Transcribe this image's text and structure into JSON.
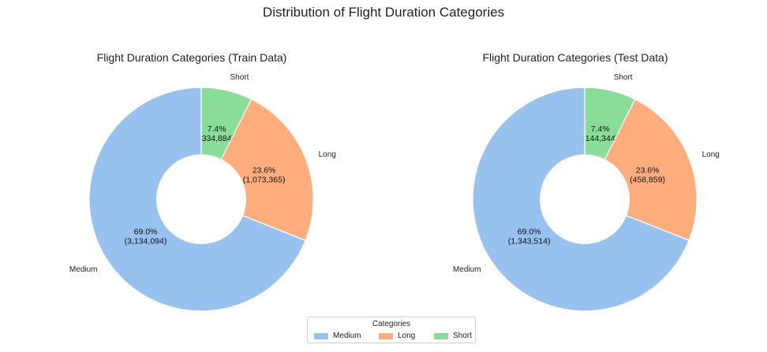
{
  "suptitle": "Distribution of Flight Duration Categories",
  "colors": {
    "Medium": "#97c1ee",
    "Long": "#ffad7c",
    "Short": "#89dd98"
  },
  "legend": {
    "title": "Categories",
    "items": [
      "Medium",
      "Long",
      "Short"
    ]
  },
  "chart_data": [
    {
      "type": "pie",
      "donut": true,
      "title": "Flight Duration Categories (Train Data)",
      "start_angle_deg": 90,
      "direction": "clockwise",
      "categories": [
        "Short",
        "Long",
        "Medium"
      ],
      "values": [
        334884,
        1073365,
        3134094
      ],
      "percent_labels": [
        "7.4%",
        "23.6%",
        "69.0%"
      ],
      "count_labels": [
        "(334,884)",
        "(1,073,365)",
        "(3,134,094)"
      ]
    },
    {
      "type": "pie",
      "donut": true,
      "title": "Flight Duration Categories (Test Data)",
      "start_angle_deg": 90,
      "direction": "clockwise",
      "categories": [
        "Short",
        "Long",
        "Medium"
      ],
      "values": [
        144344,
        458859,
        1343514
      ],
      "percent_labels": [
        "7.4%",
        "23.6%",
        "69.0%"
      ],
      "count_labels": [
        "(144,344)",
        "(458,859)",
        "(1,343,514)"
      ]
    }
  ]
}
